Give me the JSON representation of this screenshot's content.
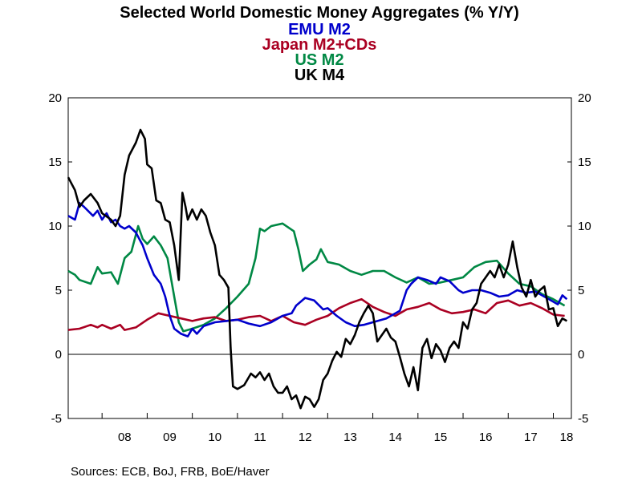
{
  "chart_data": {
    "type": "line",
    "title": "Selected World Domestic Money Aggregates (% Y/Y)",
    "source": "Sources:  ECB, BoJ, FRB, BoE/Haver",
    "ylim": [
      -5,
      20
    ],
    "y_ticks": [
      "-5",
      "0",
      "5",
      "10",
      "15",
      "20"
    ],
    "x_tick_labels": [
      "08",
      "09",
      "10",
      "11",
      "12",
      "13",
      "14",
      "15",
      "16",
      "17",
      "18"
    ],
    "grid": false,
    "zero_line": true,
    "legend_placement": "top-center (stacked under title)",
    "series": [
      {
        "name": "EMU M2",
        "color": "#0000cc",
        "points": [
          [
            2007.25,
            10.8
          ],
          [
            2007.4,
            10.5
          ],
          [
            2007.5,
            11.8
          ],
          [
            2007.6,
            11.5
          ],
          [
            2007.8,
            10.8
          ],
          [
            2007.9,
            11.2
          ],
          [
            2008.0,
            10.5
          ],
          [
            2008.1,
            11.0
          ],
          [
            2008.2,
            10.3
          ],
          [
            2008.3,
            10.5
          ],
          [
            2008.4,
            10.0
          ],
          [
            2008.5,
            9.8
          ],
          [
            2008.6,
            10.0
          ],
          [
            2008.75,
            9.5
          ],
          [
            2008.9,
            8.5
          ],
          [
            2009.0,
            7.5
          ],
          [
            2009.15,
            6.2
          ],
          [
            2009.3,
            5.5
          ],
          [
            2009.4,
            4.5
          ],
          [
            2009.5,
            3.0
          ],
          [
            2009.6,
            2.0
          ],
          [
            2009.75,
            1.6
          ],
          [
            2009.9,
            1.4
          ],
          [
            2010.0,
            2.0
          ],
          [
            2010.1,
            1.6
          ],
          [
            2010.25,
            2.2
          ],
          [
            2010.5,
            2.5
          ],
          [
            2010.75,
            2.6
          ],
          [
            2011.0,
            2.7
          ],
          [
            2011.25,
            2.4
          ],
          [
            2011.5,
            2.2
          ],
          [
            2011.75,
            2.5
          ],
          [
            2012.0,
            3.0
          ],
          [
            2012.2,
            3.2
          ],
          [
            2012.3,
            3.8
          ],
          [
            2012.5,
            4.4
          ],
          [
            2012.7,
            4.2
          ],
          [
            2012.9,
            3.5
          ],
          [
            2013.0,
            3.6
          ],
          [
            2013.2,
            3.0
          ],
          [
            2013.4,
            2.5
          ],
          [
            2013.6,
            2.2
          ],
          [
            2013.8,
            2.3
          ],
          [
            2014.0,
            2.5
          ],
          [
            2014.3,
            2.8
          ],
          [
            2014.6,
            3.4
          ],
          [
            2014.75,
            5.0
          ],
          [
            2014.85,
            5.5
          ],
          [
            2015.0,
            6.0
          ],
          [
            2015.2,
            5.8
          ],
          [
            2015.4,
            5.5
          ],
          [
            2015.5,
            6.0
          ],
          [
            2015.7,
            5.7
          ],
          [
            2015.9,
            5.0
          ],
          [
            2016.0,
            4.8
          ],
          [
            2016.2,
            5.0
          ],
          [
            2016.4,
            5.0
          ],
          [
            2016.6,
            4.8
          ],
          [
            2016.8,
            4.5
          ],
          [
            2017.0,
            4.6
          ],
          [
            2017.2,
            5.0
          ],
          [
            2017.4,
            4.8
          ],
          [
            2017.6,
            4.9
          ],
          [
            2017.8,
            4.5
          ],
          [
            2018.0,
            4.1
          ],
          [
            2018.1,
            3.9
          ],
          [
            2018.2,
            4.6
          ],
          [
            2018.3,
            4.3
          ]
        ]
      },
      {
        "name": "Japan M2+CDs",
        "color": "#aa0022",
        "points": [
          [
            2007.25,
            1.9
          ],
          [
            2007.5,
            2.0
          ],
          [
            2007.75,
            2.3
          ],
          [
            2007.9,
            2.1
          ],
          [
            2008.0,
            2.3
          ],
          [
            2008.2,
            2.0
          ],
          [
            2008.4,
            2.3
          ],
          [
            2008.5,
            1.9
          ],
          [
            2008.75,
            2.1
          ],
          [
            2009.0,
            2.7
          ],
          [
            2009.25,
            3.2
          ],
          [
            2009.5,
            3.0
          ],
          [
            2009.75,
            2.8
          ],
          [
            2010.0,
            2.6
          ],
          [
            2010.25,
            2.8
          ],
          [
            2010.5,
            2.9
          ],
          [
            2010.75,
            2.6
          ],
          [
            2011.0,
            2.7
          ],
          [
            2011.25,
            2.9
          ],
          [
            2011.5,
            3.0
          ],
          [
            2011.75,
            2.6
          ],
          [
            2012.0,
            3.0
          ],
          [
            2012.25,
            2.5
          ],
          [
            2012.5,
            2.3
          ],
          [
            2012.75,
            2.7
          ],
          [
            2013.0,
            3.0
          ],
          [
            2013.25,
            3.6
          ],
          [
            2013.5,
            4.0
          ],
          [
            2013.75,
            4.3
          ],
          [
            2014.0,
            3.7
          ],
          [
            2014.25,
            3.3
          ],
          [
            2014.5,
            3.0
          ],
          [
            2014.75,
            3.5
          ],
          [
            2015.0,
            3.7
          ],
          [
            2015.25,
            4.0
          ],
          [
            2015.5,
            3.5
          ],
          [
            2015.75,
            3.2
          ],
          [
            2016.0,
            3.3
          ],
          [
            2016.25,
            3.5
          ],
          [
            2016.5,
            3.2
          ],
          [
            2016.75,
            4.0
          ],
          [
            2017.0,
            4.2
          ],
          [
            2017.25,
            3.8
          ],
          [
            2017.5,
            4.0
          ],
          [
            2017.75,
            3.6
          ],
          [
            2018.0,
            3.1
          ],
          [
            2018.25,
            3.0
          ]
        ]
      },
      {
        "name": "US M2",
        "color": "#008844",
        "points": [
          [
            2007.25,
            6.5
          ],
          [
            2007.4,
            6.2
          ],
          [
            2007.5,
            5.8
          ],
          [
            2007.75,
            5.5
          ],
          [
            2007.9,
            6.8
          ],
          [
            2008.0,
            6.3
          ],
          [
            2008.2,
            6.4
          ],
          [
            2008.35,
            5.5
          ],
          [
            2008.5,
            7.5
          ],
          [
            2008.65,
            8.0
          ],
          [
            2008.8,
            10.0
          ],
          [
            2008.9,
            9.0
          ],
          [
            2009.0,
            8.6
          ],
          [
            2009.15,
            9.2
          ],
          [
            2009.3,
            8.5
          ],
          [
            2009.45,
            7.5
          ],
          [
            2009.6,
            4.5
          ],
          [
            2009.7,
            2.5
          ],
          [
            2009.8,
            1.8
          ],
          [
            2010.0,
            2.0
          ],
          [
            2010.25,
            2.3
          ],
          [
            2010.5,
            2.8
          ],
          [
            2010.75,
            3.6
          ],
          [
            2011.0,
            4.5
          ],
          [
            2011.25,
            5.5
          ],
          [
            2011.4,
            7.5
          ],
          [
            2011.5,
            9.8
          ],
          [
            2011.6,
            9.6
          ],
          [
            2011.75,
            10.0
          ],
          [
            2012.0,
            10.2
          ],
          [
            2012.25,
            9.6
          ],
          [
            2012.35,
            8.2
          ],
          [
            2012.45,
            6.5
          ],
          [
            2012.6,
            7.0
          ],
          [
            2012.75,
            7.4
          ],
          [
            2012.85,
            8.2
          ],
          [
            2013.0,
            7.2
          ],
          [
            2013.25,
            7.0
          ],
          [
            2013.5,
            6.5
          ],
          [
            2013.75,
            6.2
          ],
          [
            2014.0,
            6.5
          ],
          [
            2014.25,
            6.5
          ],
          [
            2014.5,
            6.0
          ],
          [
            2014.75,
            5.6
          ],
          [
            2015.0,
            6.0
          ],
          [
            2015.25,
            5.5
          ],
          [
            2015.5,
            5.6
          ],
          [
            2015.75,
            5.8
          ],
          [
            2016.0,
            6.0
          ],
          [
            2016.25,
            6.8
          ],
          [
            2016.5,
            7.2
          ],
          [
            2016.75,
            7.3
          ],
          [
            2017.0,
            6.3
          ],
          [
            2017.25,
            5.5
          ],
          [
            2017.5,
            5.3
          ],
          [
            2017.75,
            4.7
          ],
          [
            2018.0,
            4.3
          ],
          [
            2018.25,
            3.8
          ]
        ]
      },
      {
        "name": "UK M4",
        "color": "#000000",
        "points": [
          [
            2007.25,
            13.8
          ],
          [
            2007.4,
            12.8
          ],
          [
            2007.5,
            11.5
          ],
          [
            2007.6,
            12.0
          ],
          [
            2007.75,
            12.5
          ],
          [
            2007.9,
            11.8
          ],
          [
            2008.0,
            11.0
          ],
          [
            2008.2,
            10.5
          ],
          [
            2008.3,
            10.0
          ],
          [
            2008.4,
            10.8
          ],
          [
            2008.5,
            14.0
          ],
          [
            2008.6,
            15.5
          ],
          [
            2008.75,
            16.5
          ],
          [
            2008.85,
            17.5
          ],
          [
            2008.95,
            16.8
          ],
          [
            2009.0,
            14.8
          ],
          [
            2009.1,
            14.5
          ],
          [
            2009.2,
            12.0
          ],
          [
            2009.3,
            11.8
          ],
          [
            2009.4,
            10.5
          ],
          [
            2009.5,
            10.3
          ],
          [
            2009.6,
            8.5
          ],
          [
            2009.7,
            5.8
          ],
          [
            2009.78,
            12.6
          ],
          [
            2009.85,
            11.5
          ],
          [
            2009.9,
            10.5
          ],
          [
            2010.0,
            11.3
          ],
          [
            2010.1,
            10.5
          ],
          [
            2010.2,
            11.3
          ],
          [
            2010.3,
            10.8
          ],
          [
            2010.4,
            9.5
          ],
          [
            2010.5,
            8.5
          ],
          [
            2010.6,
            6.2
          ],
          [
            2010.7,
            5.8
          ],
          [
            2010.8,
            5.2
          ],
          [
            2010.85,
            0.5
          ],
          [
            2010.9,
            -2.5
          ],
          [
            2011.0,
            -2.7
          ],
          [
            2011.15,
            -2.4
          ],
          [
            2011.3,
            -1.5
          ],
          [
            2011.4,
            -1.8
          ],
          [
            2011.5,
            -1.4
          ],
          [
            2011.6,
            -2.0
          ],
          [
            2011.7,
            -1.5
          ],
          [
            2011.8,
            -2.5
          ],
          [
            2011.9,
            -3.0
          ],
          [
            2012.0,
            -3.0
          ],
          [
            2012.1,
            -2.5
          ],
          [
            2012.2,
            -3.5
          ],
          [
            2012.3,
            -3.2
          ],
          [
            2012.4,
            -4.2
          ],
          [
            2012.5,
            -3.3
          ],
          [
            2012.6,
            -3.5
          ],
          [
            2012.7,
            -4.1
          ],
          [
            2012.8,
            -3.5
          ],
          [
            2012.9,
            -2.0
          ],
          [
            2013.0,
            -1.5
          ],
          [
            2013.1,
            -0.5
          ],
          [
            2013.2,
            0.2
          ],
          [
            2013.3,
            -0.2
          ],
          [
            2013.4,
            1.2
          ],
          [
            2013.5,
            0.8
          ],
          [
            2013.6,
            1.5
          ],
          [
            2013.7,
            2.5
          ],
          [
            2013.8,
            3.2
          ],
          [
            2013.9,
            3.8
          ],
          [
            2014.0,
            3.2
          ],
          [
            2014.1,
            1.0
          ],
          [
            2014.2,
            1.5
          ],
          [
            2014.3,
            2.0
          ],
          [
            2014.4,
            1.3
          ],
          [
            2014.5,
            1.0
          ],
          [
            2014.6,
            -0.2
          ],
          [
            2014.7,
            -1.5
          ],
          [
            2014.8,
            -2.5
          ],
          [
            2014.9,
            -1.0
          ],
          [
            2015.0,
            -2.8
          ],
          [
            2015.1,
            0.5
          ],
          [
            2015.2,
            1.2
          ],
          [
            2015.3,
            -0.3
          ],
          [
            2015.4,
            0.8
          ],
          [
            2015.5,
            0.3
          ],
          [
            2015.6,
            -0.6
          ],
          [
            2015.7,
            0.5
          ],
          [
            2015.8,
            1.0
          ],
          [
            2015.9,
            0.5
          ],
          [
            2016.0,
            2.5
          ],
          [
            2016.1,
            2.0
          ],
          [
            2016.2,
            3.5
          ],
          [
            2016.3,
            4.0
          ],
          [
            2016.4,
            5.5
          ],
          [
            2016.5,
            6.0
          ],
          [
            2016.6,
            6.5
          ],
          [
            2016.7,
            6.0
          ],
          [
            2016.8,
            7.0
          ],
          [
            2016.9,
            6.0
          ],
          [
            2017.0,
            7.0
          ],
          [
            2017.1,
            8.8
          ],
          [
            2017.2,
            6.8
          ],
          [
            2017.3,
            5.2
          ],
          [
            2017.4,
            4.5
          ],
          [
            2017.5,
            5.8
          ],
          [
            2017.6,
            4.5
          ],
          [
            2017.7,
            5.0
          ],
          [
            2017.8,
            5.3
          ],
          [
            2017.9,
            3.5
          ],
          [
            2018.0,
            3.6
          ],
          [
            2018.1,
            2.2
          ],
          [
            2018.2,
            2.8
          ],
          [
            2018.3,
            2.6
          ]
        ]
      }
    ]
  }
}
